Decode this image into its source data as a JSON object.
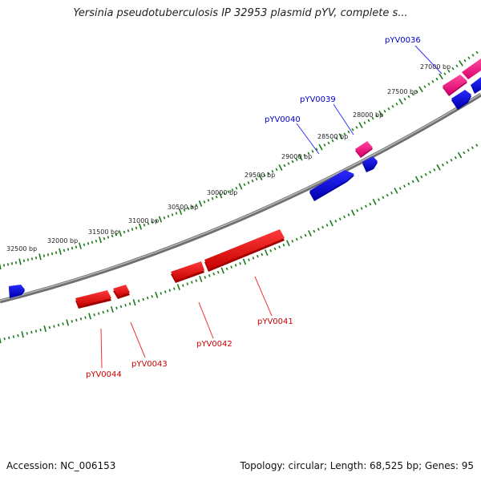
{
  "title": "Yersinia pseudotuberculosis IP 32953 plasmid pYV, complete s...",
  "footer": {
    "accession": "Accession: NC_006153",
    "summary": "Topology: circular; Length: 68,525 bp; Genes: 95"
  },
  "ruler_labels": [
    {
      "text": "27000 bp",
      "bp": 27000
    },
    {
      "text": "27500 bp",
      "bp": 27500
    },
    {
      "text": "28000 bp",
      "bp": 28000
    },
    {
      "text": "28500 bp",
      "bp": 28500
    },
    {
      "text": "29000 bp",
      "bp": 29000
    },
    {
      "text": "29500 bp",
      "bp": 29500
    },
    {
      "text": "30000 bp",
      "bp": 30000
    },
    {
      "text": "30500 bp",
      "bp": 30500
    },
    {
      "text": "31000 bp",
      "bp": 31000
    },
    {
      "text": "31500 bp",
      "bp": 31500
    },
    {
      "text": "32000 bp",
      "bp": 32000
    },
    {
      "text": "32500 bp",
      "bp": 32500
    }
  ],
  "gene_labels": [
    {
      "text": "pYV0036",
      "strand": "forward",
      "color": "#0000cc"
    },
    {
      "text": "pYV0039",
      "strand": "forward",
      "color": "#0000cc"
    },
    {
      "text": "pYV0040",
      "strand": "forward",
      "color": "#0000cc"
    },
    {
      "text": "pYV0041",
      "strand": "reverse",
      "color": "#cc0000"
    },
    {
      "text": "pYV0042",
      "strand": "reverse",
      "color": "#cc0000"
    },
    {
      "text": "pYV0043",
      "strand": "reverse",
      "color": "#cc0000"
    },
    {
      "text": "pYV0044",
      "strand": "reverse",
      "color": "#cc0000"
    }
  ],
  "colors": {
    "forward_gene": "#1a1acc",
    "reverse_gene": "#ee1111",
    "pink_gene": "#ff2288",
    "backbone": "#8a8a8a",
    "ruler": "#1a7a1a"
  }
}
